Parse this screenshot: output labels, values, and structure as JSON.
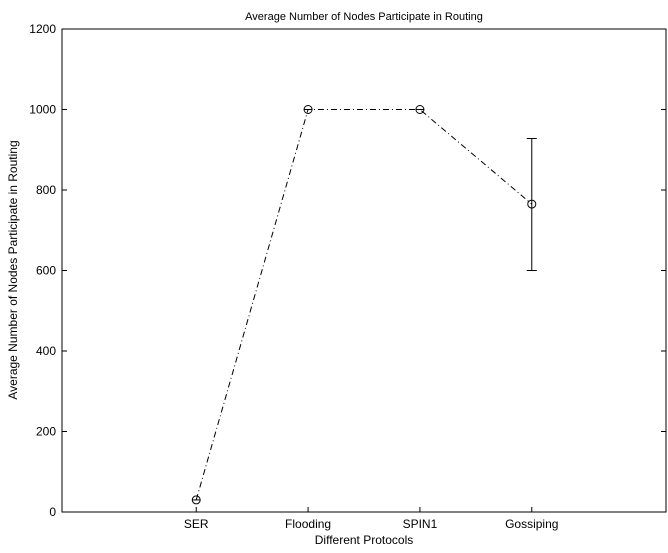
{
  "chart_data": {
    "type": "line",
    "title": "Average Number of Nodes Participate in Routing",
    "xlabel": "Different Protocols",
    "ylabel": "Average Number of Nodes Participate in Routing",
    "categories": [
      "SER",
      "Flooding",
      "SPIN1",
      "Gossiping"
    ],
    "series": [
      {
        "values": [
          30,
          1000,
          1000,
          765
        ],
        "error_low": [
          30,
          1000,
          1000,
          600
        ],
        "error_high": [
          30,
          1000,
          1000,
          928
        ],
        "marker": "circle",
        "line_style": "dash-dot",
        "color": "#000000"
      }
    ],
    "ylim": [
      0,
      1200
    ],
    "yticks": [
      0,
      200,
      400,
      600,
      800,
      1000,
      1200
    ],
    "ytick_labels": [
      "0",
      "200",
      "400",
      "600",
      "800",
      "1000",
      "1200"
    ],
    "grid": false
  }
}
